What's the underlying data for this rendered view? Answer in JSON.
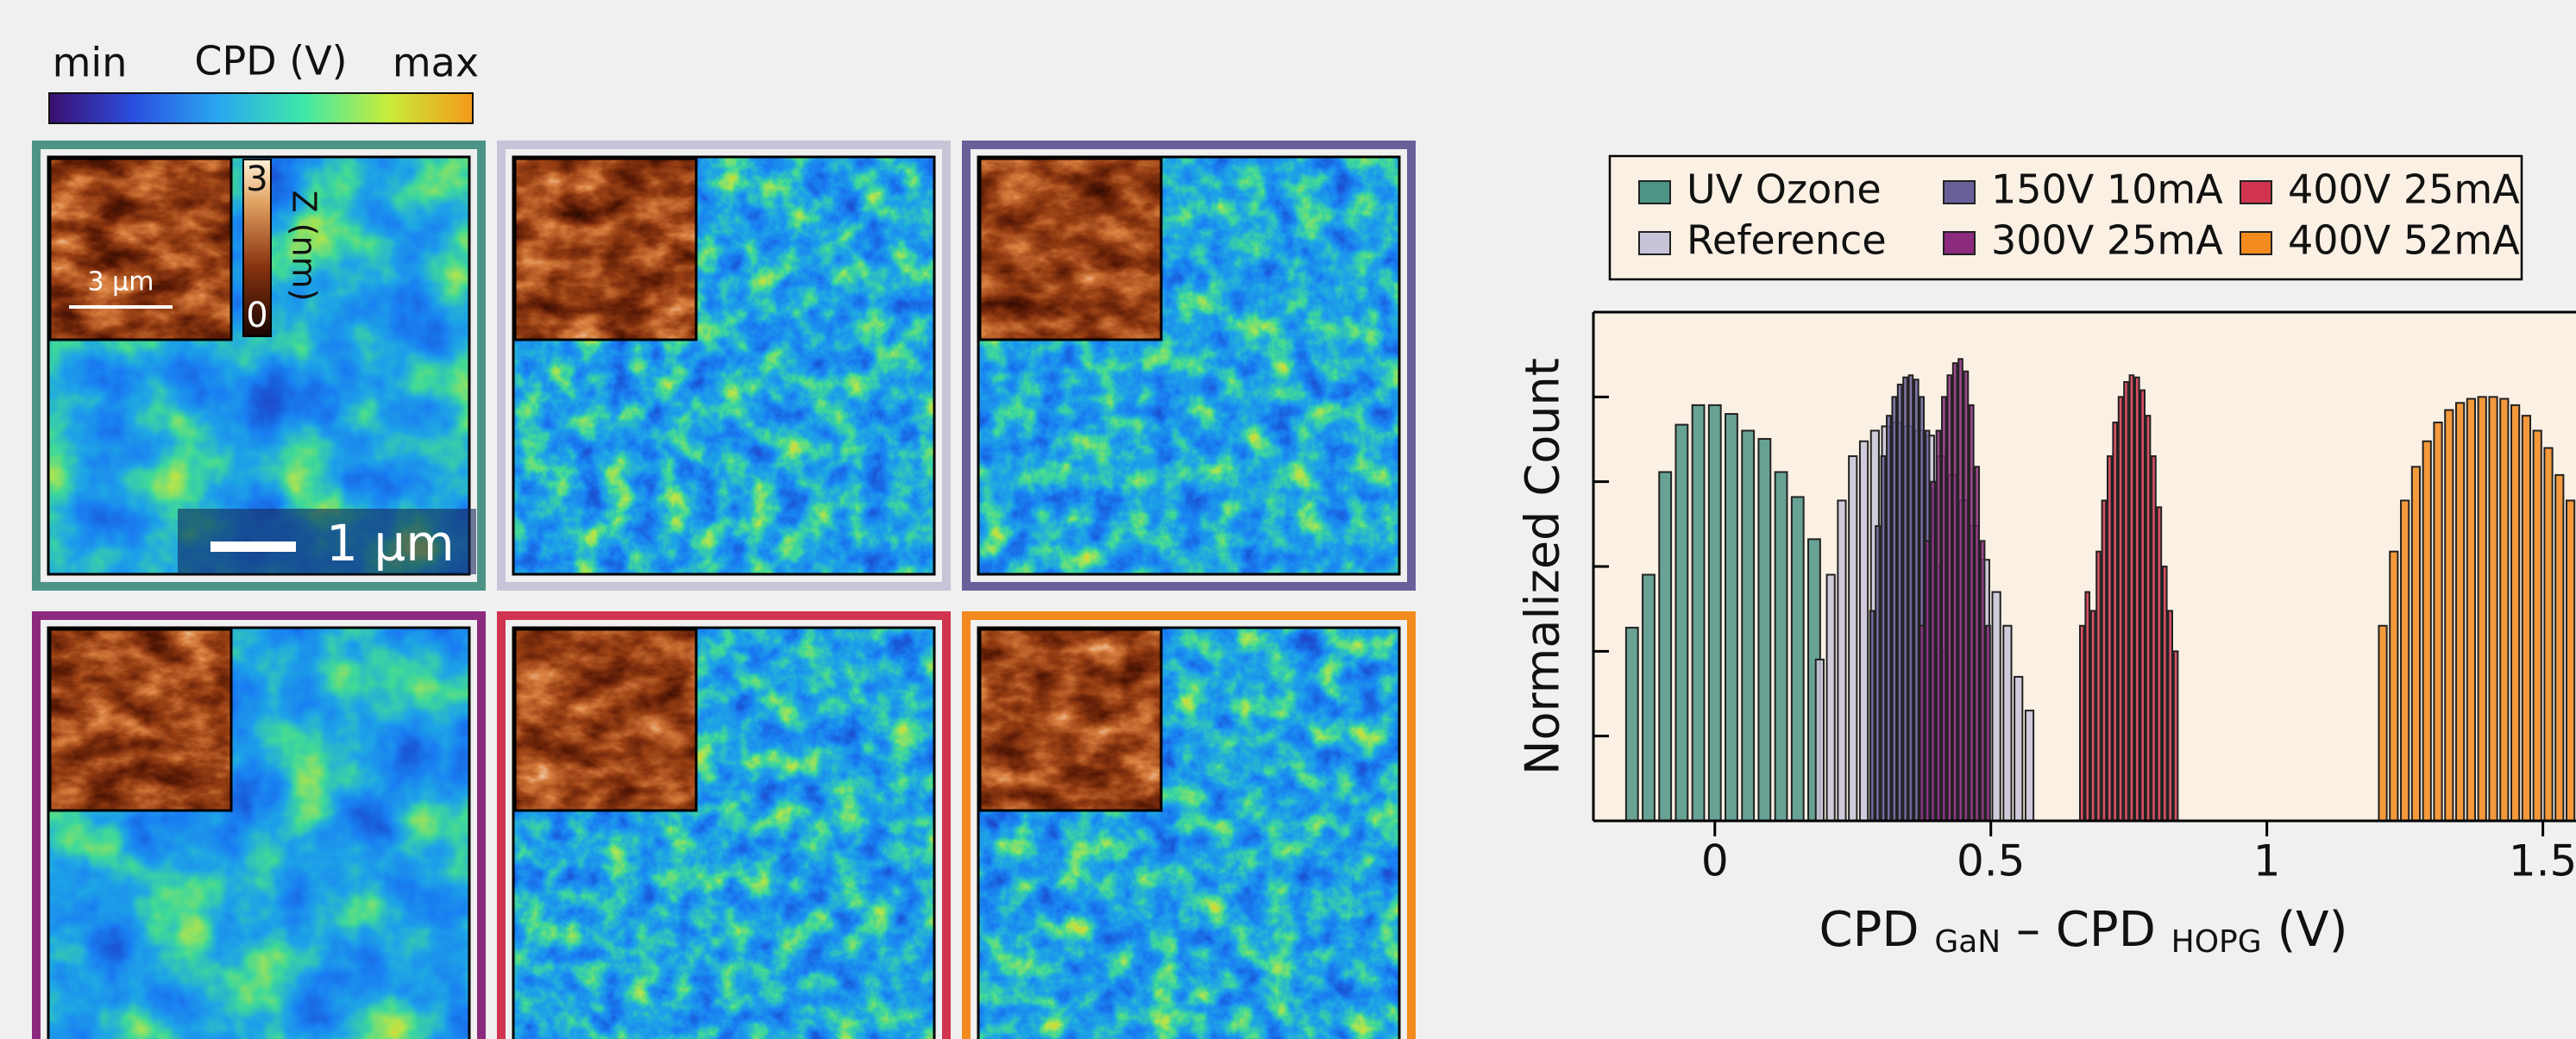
{
  "figure": {
    "colorbar": {
      "min": "min",
      "label": "CPD (V)",
      "max": "max"
    },
    "inset_colorbar": {
      "top": 3,
      "bottom": 0,
      "label": "Z (nm)"
    },
    "inset_scalebar": "3 µm",
    "scalebar": "1 µm"
  },
  "chart_data": {
    "type": "histogram",
    "ylabel": "Normalized Count",
    "xlabel": [
      "CPD ",
      "GaN",
      " – CPD ",
      "HOPG",
      " (V)"
    ],
    "xlim": [
      -0.22,
      1.56
    ],
    "xticks": [
      0,
      0.5,
      1,
      1.5
    ],
    "ylim": [
      1e-06,
      1
    ],
    "yticks": [
      1e-06,
      1e-05,
      0.0001,
      0.001,
      0.01,
      0.1,
      1
    ],
    "ylog": true,
    "legend": "top",
    "series": [
      {
        "name": "UV Ozone",
        "color": "#4e9486",
        "bins": [
          -0.165,
          -0.135,
          -0.105,
          -0.075,
          -0.045,
          -0.015,
          0.015,
          0.045,
          0.075,
          0.105,
          0.135,
          0.165,
          0.195
        ],
        "values": [
          0.00019,
          0.0008,
          0.013,
          0.047,
          0.08,
          0.08,
          0.063,
          0.04,
          0.032,
          0.013,
          0.0066,
          0.0021
        ]
      },
      {
        "name": "Reference",
        "color": "#c8c4d8",
        "bins": [
          0.18,
          0.2,
          0.22,
          0.24,
          0.26,
          0.28,
          0.3,
          0.32,
          0.34,
          0.36,
          0.38,
          0.4,
          0.42,
          0.44,
          0.46,
          0.48,
          0.5,
          0.52,
          0.54,
          0.56,
          0.58
        ],
        "values": [
          8e-05,
          0.0008,
          0.006,
          0.02,
          0.03,
          0.04,
          0.045,
          0.05,
          0.045,
          0.04,
          0.035,
          0.02,
          0.012,
          0.006,
          0.003,
          0.0012,
          0.0005,
          0.0002,
          5e-05,
          2e-05
        ]
      },
      {
        "name": "150V 10mA",
        "color": "#6b5f9a",
        "bins": [
          0.28,
          0.29,
          0.3,
          0.31,
          0.32,
          0.33,
          0.34,
          0.35,
          0.36,
          0.37,
          0.38,
          0.39,
          0.4,
          0.41,
          0.42
        ],
        "values": [
          0.0003,
          0.003,
          0.02,
          0.06,
          0.1,
          0.14,
          0.17,
          0.18,
          0.16,
          0.1,
          0.04,
          0.008,
          0.001,
          0.0001
        ]
      },
      {
        "name": "300V 25mA",
        "color": "#8c2a7e",
        "bins": [
          0.37,
          0.38,
          0.39,
          0.4,
          0.41,
          0.42,
          0.43,
          0.44,
          0.45,
          0.46,
          0.47,
          0.48,
          0.49,
          0.5
        ],
        "values": [
          0.0002,
          0.002,
          0.01,
          0.04,
          0.1,
          0.18,
          0.25,
          0.28,
          0.2,
          0.08,
          0.015,
          0.002,
          0.0002
        ]
      },
      {
        "name": "400V 25mA",
        "color": "#d0344e",
        "bins": [
          0.66,
          0.67,
          0.68,
          0.69,
          0.7,
          0.71,
          0.72,
          0.73,
          0.74,
          0.75,
          0.76,
          0.77,
          0.78,
          0.79,
          0.8,
          0.81,
          0.82,
          0.83,
          0.84
        ],
        "values": [
          0.0002,
          0.0005,
          0.0003,
          0.0015,
          0.006,
          0.02,
          0.05,
          0.1,
          0.15,
          0.18,
          0.17,
          0.12,
          0.06,
          0.02,
          0.005,
          0.001,
          0.0003,
          0.0001
        ]
      },
      {
        "name": "400V 52mA",
        "color": "#f28a1e",
        "bins": [
          1.2,
          1.22,
          1.24,
          1.26,
          1.28,
          1.3,
          1.32,
          1.34,
          1.36,
          1.38,
          1.4,
          1.42,
          1.44,
          1.46,
          1.48,
          1.5,
          1.52,
          1.54,
          1.56
        ],
        "values": [
          0.0002,
          0.0015,
          0.006,
          0.015,
          0.03,
          0.05,
          0.07,
          0.085,
          0.095,
          0.1,
          0.1,
          0.095,
          0.08,
          0.06,
          0.04,
          0.025,
          0.012,
          0.006
        ]
      }
    ]
  }
}
